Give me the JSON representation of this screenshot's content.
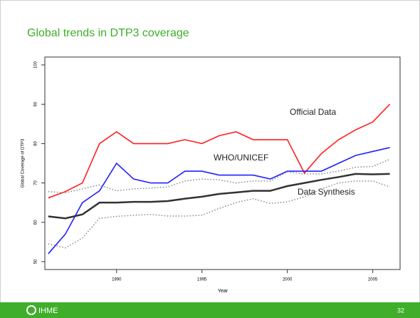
{
  "title": "Global trends in DTP3 coverage",
  "footer": {
    "logo": "IHME",
    "page": "32"
  },
  "chart_data": {
    "type": "line",
    "xlabel": "Year",
    "ylabel": "Global Coverage of DTP3",
    "x": [
      1986,
      1987,
      1988,
      1989,
      1990,
      1991,
      1992,
      1993,
      1994,
      1995,
      1996,
      1997,
      1998,
      1999,
      2000,
      2001,
      2002,
      2003,
      2004,
      2005,
      2006
    ],
    "series": [
      {
        "name": "Official Data",
        "color": "#ff2020",
        "style": "solid",
        "values": [
          66.2,
          67.8,
          70,
          80,
          83,
          80,
          80,
          80,
          81,
          80,
          82,
          83,
          81,
          81,
          81,
          72.5,
          77.5,
          81,
          83.5,
          85.5,
          90
        ]
      },
      {
        "name": "WHO/UNICEF",
        "color": "#2020ff",
        "style": "solid",
        "values": [
          52,
          57,
          65,
          68,
          75,
          71,
          70,
          70,
          73,
          73,
          72,
          72,
          72,
          71,
          73,
          73,
          73,
          75,
          77,
          78,
          79
        ]
      },
      {
        "name": "Data Synthesis",
        "color": "#333333",
        "style": "solid",
        "values": [
          61.5,
          61,
          62,
          65,
          65,
          65.2,
          65.2,
          65.4,
          66,
          66.5,
          67.2,
          67.6,
          68,
          68,
          69.2,
          70,
          70.8,
          71.5,
          72.3,
          72.2,
          72.3
        ]
      },
      {
        "color": "#888888",
        "style": "dotted",
        "values": [
          67.8,
          67.5,
          68.5,
          69.5,
          68,
          68.5,
          68.7,
          69,
          70.5,
          71,
          70.8,
          70,
          70.5,
          70.5,
          72.8,
          72.3,
          72.3,
          73,
          74,
          74.2,
          76
        ]
      },
      {
        "color": "#888888",
        "style": "dotted",
        "values": [
          54.5,
          53.5,
          56,
          61,
          61.5,
          61.8,
          62,
          61.6,
          61.6,
          61.8,
          63.5,
          65,
          66,
          64.8,
          65.2,
          66.5,
          68.5,
          70,
          70.5,
          70.5,
          69
        ]
      }
    ],
    "xlim": [
      1985.8,
      2006.6
    ],
    "xticks": [
      1990,
      1995,
      2000,
      2005
    ],
    "ylim": [
      48,
      102
    ],
    "yticks": [
      50,
      60,
      70,
      80,
      90,
      100
    ]
  }
}
